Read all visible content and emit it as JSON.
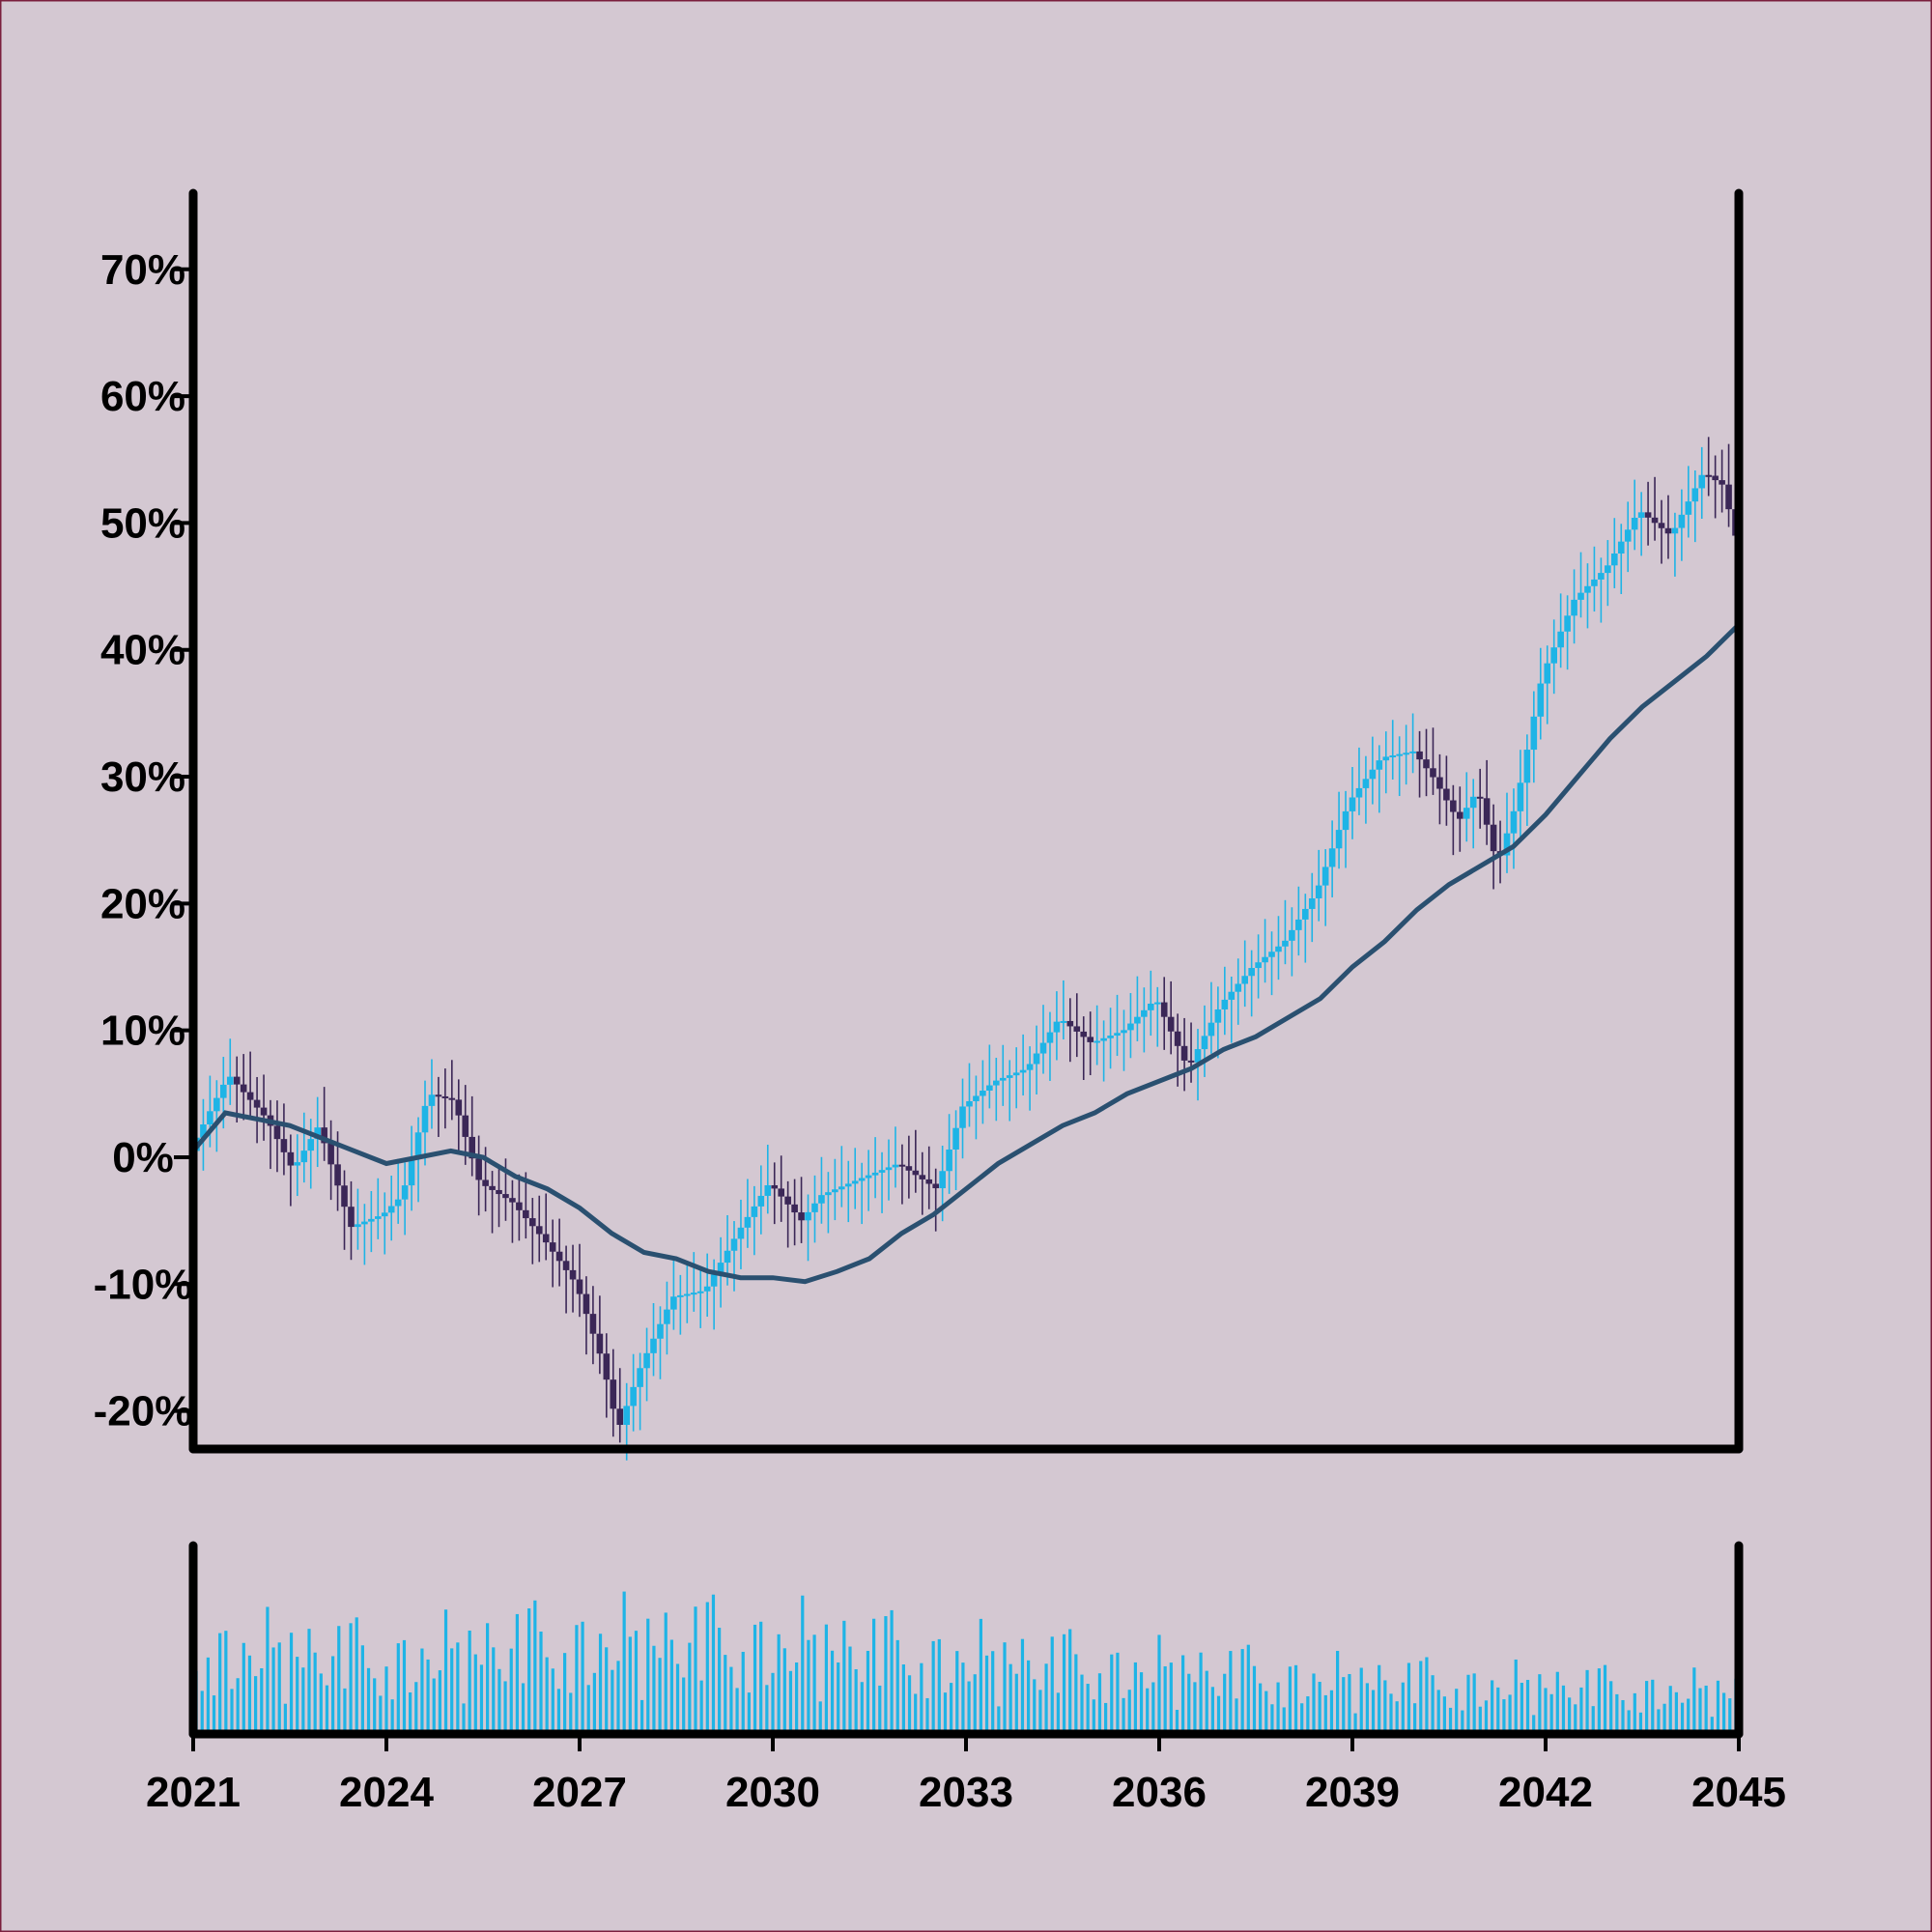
{
  "chart_data": {
    "type": "candlestick",
    "title": "",
    "xlabel": "",
    "ylabel": "",
    "x_range": [
      2021,
      2045
    ],
    "x_ticks": [
      2021,
      2024,
      2027,
      2030,
      2033,
      2036,
      2039,
      2042,
      2045
    ],
    "y_range": [
      -23,
      76
    ],
    "y_ticks": [
      -20,
      -10,
      0,
      10,
      20,
      30,
      40,
      50,
      60,
      70
    ],
    "y_tick_labels": [
      "-20%",
      "-10%",
      "0%",
      "10%",
      "20%",
      "30%",
      "40%",
      "50%",
      "60%",
      "70%"
    ],
    "grid": false,
    "colors": {
      "background": "#d4c8d2",
      "up": "#1eb4e6",
      "down": "#3b2757",
      "moving_average": "#2a5070",
      "volume": "#1eb4e6",
      "axis": "#000000",
      "border": "#7a1f3d"
    },
    "price_anchors": [
      [
        2021.0,
        0.5
      ],
      [
        2021.6,
        6.5
      ],
      [
        2022.2,
        3.0
      ],
      [
        2022.6,
        -1.0
      ],
      [
        2023.0,
        2.5
      ],
      [
        2023.5,
        -5.5
      ],
      [
        2024.0,
        -4.5
      ],
      [
        2024.3,
        -3.0
      ],
      [
        2024.7,
        5.0
      ],
      [
        2025.1,
        4.5
      ],
      [
        2025.5,
        -2.0
      ],
      [
        2026.0,
        -3.5
      ],
      [
        2026.5,
        -6.5
      ],
      [
        2027.0,
        -10.0
      ],
      [
        2027.4,
        -16.0
      ],
      [
        2027.65,
        -21.5
      ],
      [
        2028.0,
        -16.5
      ],
      [
        2028.5,
        -11.0
      ],
      [
        2029.0,
        -10.5
      ],
      [
        2029.5,
        -6.0
      ],
      [
        2030.0,
        -2.0
      ],
      [
        2030.5,
        -5.0
      ],
      [
        2030.8,
        -3.0
      ],
      [
        2031.5,
        -1.5
      ],
      [
        2032.0,
        -0.5
      ],
      [
        2032.6,
        -2.5
      ],
      [
        2033.0,
        4.0
      ],
      [
        2033.5,
        6.0
      ],
      [
        2034.0,
        7.0
      ],
      [
        2034.5,
        11.0
      ],
      [
        2035.0,
        9.0
      ],
      [
        2035.5,
        10.0
      ],
      [
        2036.0,
        12.5
      ],
      [
        2036.5,
        7.0
      ],
      [
        2037.0,
        12.0
      ],
      [
        2037.5,
        15.0
      ],
      [
        2038.0,
        17.0
      ],
      [
        2038.5,
        21.0
      ],
      [
        2039.0,
        28.0
      ],
      [
        2039.5,
        31.5
      ],
      [
        2040.0,
        32.0
      ],
      [
        2040.3,
        30.0
      ],
      [
        2040.7,
        26.5
      ],
      [
        2041.0,
        29.0
      ],
      [
        2041.3,
        23.0
      ],
      [
        2041.6,
        28.0
      ],
      [
        2042.0,
        38.0
      ],
      [
        2042.5,
        44.0
      ],
      [
        2043.0,
        46.5
      ],
      [
        2043.5,
        51.0
      ],
      [
        2044.0,
        49.0
      ],
      [
        2044.5,
        54.0
      ],
      [
        2044.8,
        53.0
      ],
      [
        2045.0,
        49.0
      ]
    ],
    "moving_average": [
      [
        2021.0,
        0.5
      ],
      [
        2021.5,
        3.5
      ],
      [
        2022.0,
        3.0
      ],
      [
        2022.5,
        2.5
      ],
      [
        2023.0,
        1.5
      ],
      [
        2023.5,
        0.5
      ],
      [
        2024.0,
        -0.5
      ],
      [
        2024.5,
        0.0
      ],
      [
        2025.0,
        0.5
      ],
      [
        2025.5,
        0.0
      ],
      [
        2026.0,
        -1.5
      ],
      [
        2026.5,
        -2.5
      ],
      [
        2027.0,
        -4.0
      ],
      [
        2027.5,
        -6.0
      ],
      [
        2028.0,
        -7.5
      ],
      [
        2028.5,
        -8.0
      ],
      [
        2029.0,
        -9.0
      ],
      [
        2029.5,
        -9.5
      ],
      [
        2030.0,
        -9.5
      ],
      [
        2030.5,
        -9.8
      ],
      [
        2031.0,
        -9.0
      ],
      [
        2031.5,
        -8.0
      ],
      [
        2032.0,
        -6.0
      ],
      [
        2032.5,
        -4.5
      ],
      [
        2033.0,
        -2.5
      ],
      [
        2033.5,
        -0.5
      ],
      [
        2034.0,
        1.0
      ],
      [
        2034.5,
        2.5
      ],
      [
        2035.0,
        3.5
      ],
      [
        2035.5,
        5.0
      ],
      [
        2036.0,
        6.0
      ],
      [
        2036.5,
        7.0
      ],
      [
        2037.0,
        8.5
      ],
      [
        2037.5,
        9.5
      ],
      [
        2038.0,
        11.0
      ],
      [
        2038.5,
        12.5
      ],
      [
        2039.0,
        15.0
      ],
      [
        2039.5,
        17.0
      ],
      [
        2040.0,
        19.5
      ],
      [
        2040.5,
        21.5
      ],
      [
        2041.0,
        23.0
      ],
      [
        2041.5,
        24.5
      ],
      [
        2042.0,
        27.0
      ],
      [
        2042.5,
        30.0
      ],
      [
        2043.0,
        33.0
      ],
      [
        2043.5,
        35.5
      ],
      [
        2044.0,
        37.5
      ],
      [
        2044.5,
        39.5
      ],
      [
        2045.0,
        42.0
      ]
    ],
    "volume_pattern": [
      0.42,
      0.62,
      0.85,
      0.55,
      0.35,
      0.72,
      0.48,
      0.28,
      0.66,
      0.9,
      0.4,
      0.58,
      0.3,
      0.78,
      0.52,
      0.2,
      0.68,
      0.46,
      0.82,
      0.38,
      0.6,
      0.25,
      0.74,
      0.5,
      0.92,
      0.33,
      0.64,
      0.44,
      0.7,
      0.56
    ],
    "volume_envelope": [
      [
        2021,
        0.75
      ],
      [
        2024,
        0.65
      ],
      [
        2027,
        0.8
      ],
      [
        2030,
        0.8
      ],
      [
        2033,
        0.65
      ],
      [
        2036,
        0.55
      ],
      [
        2039,
        0.45
      ],
      [
        2042,
        0.4
      ],
      [
        2045,
        0.35
      ]
    ]
  }
}
